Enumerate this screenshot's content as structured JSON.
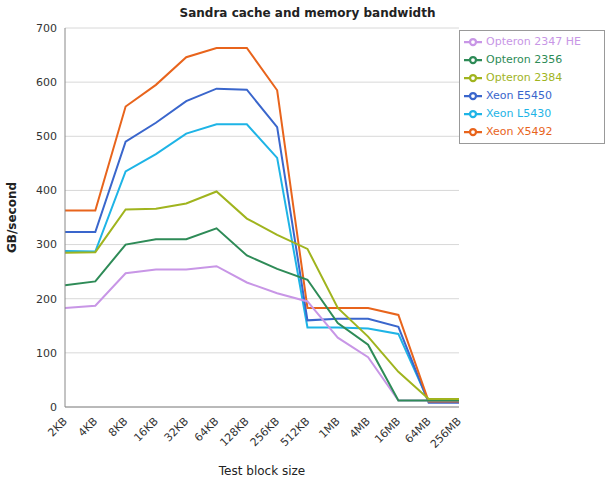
{
  "chart_data": {
    "type": "line",
    "title": "Sandra cache and memory bandwidth",
    "x_label": "Test block size",
    "y_label": "GB/second",
    "categories": [
      "2KB",
      "4KB",
      "8KB",
      "16KB",
      "32KB",
      "64KB",
      "128KB",
      "256KB",
      "512KB",
      "1MB",
      "4MB",
      "16MB",
      "64MB",
      "256MB"
    ],
    "series": [
      {
        "name": "Xeon L5430",
        "color": "#1eb4e6",
        "values": [
          288,
          287,
          435,
          467,
          505,
          522,
          522,
          460,
          147,
          147,
          145,
          135,
          10,
          10
        ]
      },
      {
        "name": "Xeon E5450",
        "color": "#3a66cc",
        "values": [
          323,
          323,
          490,
          525,
          565,
          588,
          586,
          517,
          160,
          163,
          163,
          148,
          8,
          8
        ]
      },
      {
        "name": "Xeon X5492",
        "color": "#e8641c",
        "values": [
          363,
          363,
          555,
          595,
          646,
          663,
          663,
          585,
          183,
          183,
          183,
          170,
          10,
          10
        ]
      },
      {
        "name": "Opteron 2347 HE",
        "color": "#c896e6",
        "values": [
          183,
          187,
          247,
          254,
          254,
          260,
          230,
          210,
          195,
          128,
          92,
          12,
          12,
          12
        ]
      },
      {
        "name": "Opteron 2356",
        "color": "#2e8b57",
        "values": [
          225,
          232,
          300,
          310,
          310,
          330,
          280,
          255,
          235,
          155,
          115,
          12,
          12,
          12
        ]
      },
      {
        "name": "Opteron 2384",
        "color": "#a0b41e",
        "values": [
          285,
          286,
          365,
          366,
          376,
          398,
          348,
          318,
          292,
          183,
          130,
          65,
          15,
          15
        ]
      }
    ],
    "ylim": [
      0,
      700
    ],
    "yticks": [
      0,
      100,
      200,
      300,
      400,
      500,
      600,
      700
    ],
    "grid": true,
    "legend": "upper right"
  }
}
